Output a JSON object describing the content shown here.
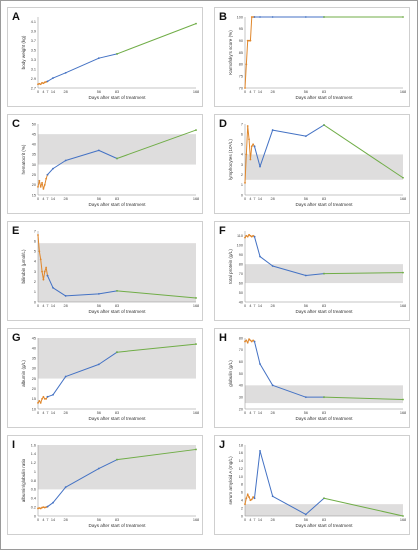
{
  "figure": {
    "colors": {
      "early": "#e0872c",
      "treatment": "#4472c4",
      "followup": "#70ad47",
      "normal_band": "#dedddd",
      "axis": "#8c8c8c"
    }
  },
  "chart_data": [
    {
      "panel": "A",
      "type": "line",
      "xlabel": "Days after start of treatment",
      "ylabel": "body weight (kg)",
      "xticks": [
        0,
        4,
        7,
        14,
        28,
        56,
        83,
        168
      ],
      "xlim": [
        0,
        168
      ],
      "ylim": [
        2.7,
        4.2
      ],
      "yticks": [
        2.7,
        2.9,
        3.1,
        3.3,
        3.5,
        3.7,
        3.9,
        4.1
      ],
      "ytick_labels": [
        "2.7",
        "2.9",
        "3.1",
        "3.3",
        "3.5",
        "3.7",
        "3.9",
        "4.1"
      ],
      "band": null,
      "series": [
        {
          "color": "orange",
          "x": [
            0,
            1,
            2,
            3,
            4,
            5,
            6,
            7
          ],
          "y": [
            2.78,
            2.79,
            2.78,
            2.81,
            2.8,
            2.82,
            2.83,
            2.84
          ]
        },
        {
          "color": "blue",
          "x": [
            7,
            14,
            28,
            56,
            83
          ],
          "y": [
            2.84,
            2.91,
            3.02,
            3.33,
            3.42
          ]
        },
        {
          "color": "green",
          "x": [
            83,
            168
          ],
          "y": [
            3.42,
            4.06
          ]
        }
      ]
    },
    {
      "panel": "B",
      "type": "line",
      "xlabel": "Days after start of treatment",
      "ylabel": "Karnofsky's score (%)",
      "xticks": [
        0,
        4,
        7,
        14,
        28,
        56,
        83,
        168
      ],
      "xlim": [
        0,
        168
      ],
      "ylim": [
        70,
        100
      ],
      "yticks": [
        70,
        75,
        80,
        85,
        90,
        95,
        100
      ],
      "ytick_labels": [
        "70",
        "75",
        "80",
        "85",
        "90",
        "95",
        "100"
      ],
      "band": null,
      "series": [
        {
          "color": "orange",
          "x": [
            0,
            1,
            2,
            3,
            4,
            5,
            6,
            7
          ],
          "y": [
            70,
            80,
            90,
            90,
            90,
            100,
            100,
            100
          ]
        },
        {
          "color": "blue",
          "x": [
            7,
            14,
            28,
            56,
            83
          ],
          "y": [
            100,
            100,
            100,
            100,
            100
          ]
        },
        {
          "color": "green",
          "x": [
            83,
            168
          ],
          "y": [
            100,
            100
          ]
        }
      ]
    },
    {
      "panel": "C",
      "type": "line",
      "xlabel": "Days after start of treatment",
      "ylabel": "hematocrit (%)",
      "xticks": [
        0,
        4,
        7,
        14,
        28,
        56,
        83,
        168
      ],
      "xlim": [
        0,
        168
      ],
      "ylim": [
        15,
        50
      ],
      "yticks": [
        15,
        20,
        25,
        30,
        35,
        40,
        45,
        50
      ],
      "ytick_labels": [
        "15",
        "20",
        "25",
        "30",
        "35",
        "40",
        "45",
        "50"
      ],
      "band": [
        30,
        45
      ],
      "series": [
        {
          "color": "orange",
          "x": [
            0,
            1,
            2,
            3,
            4,
            5,
            6,
            7
          ],
          "y": [
            19,
            22,
            19,
            21,
            18,
            20,
            23,
            25
          ]
        },
        {
          "color": "blue",
          "x": [
            7,
            14,
            28,
            56,
            83
          ],
          "y": [
            25,
            28,
            32,
            37,
            33
          ]
        },
        {
          "color": "green",
          "x": [
            83,
            168
          ],
          "y": [
            33,
            47
          ]
        }
      ]
    },
    {
      "panel": "D",
      "type": "line",
      "xlabel": "Days after start of treatment",
      "ylabel": "lymphocytes (10⁹/L)",
      "xticks": [
        0,
        4,
        7,
        14,
        28,
        56,
        83,
        168
      ],
      "xlim": [
        0,
        168
      ],
      "ylim": [
        0,
        7
      ],
      "yticks": [
        0,
        1,
        2,
        3,
        4,
        5,
        6,
        7
      ],
      "ytick_labels": [
        "0",
        "1",
        "2",
        "3",
        "4",
        "5",
        "6",
        "7"
      ],
      "band": [
        1.5,
        4
      ],
      "series": [
        {
          "color": "orange",
          "x": [
            0,
            1,
            2,
            3,
            4,
            5,
            6,
            7
          ],
          "y": [
            1.2,
            4.0,
            6.8,
            5.5,
            3.5,
            4.8,
            5.0,
            4.8
          ]
        },
        {
          "color": "blue",
          "x": [
            7,
            14,
            28,
            56,
            83
          ],
          "y": [
            4.8,
            2.8,
            6.4,
            5.8,
            6.9
          ]
        },
        {
          "color": "green",
          "x": [
            83,
            168
          ],
          "y": [
            6.9,
            1.7
          ]
        }
      ]
    },
    {
      "panel": "E",
      "type": "line",
      "xlabel": "Days after start of treatment",
      "ylabel": "bilirubin (μmol/L)",
      "xticks": [
        0,
        4,
        7,
        14,
        28,
        56,
        83,
        168
      ],
      "xlim": [
        0,
        168
      ],
      "ylim": [
        0,
        7
      ],
      "yticks": [
        0,
        1,
        2,
        3,
        4,
        5,
        6,
        7
      ],
      "ytick_labels": [
        "0",
        "1",
        "2",
        "3",
        "4",
        "5",
        "6",
        "7"
      ],
      "band": [
        0,
        5.8
      ],
      "series": [
        {
          "color": "orange",
          "x": [
            0,
            1,
            2,
            3,
            4,
            5,
            6,
            7
          ],
          "y": [
            6.6,
            5.0,
            4.2,
            3.0,
            2.2,
            3.0,
            3.4,
            2.6
          ]
        },
        {
          "color": "blue",
          "x": [
            7,
            14,
            28,
            56,
            83
          ],
          "y": [
            2.6,
            1.4,
            0.6,
            0.8,
            1.1
          ]
        },
        {
          "color": "green",
          "x": [
            83,
            168
          ],
          "y": [
            1.1,
            0.4
          ]
        }
      ]
    },
    {
      "panel": "F",
      "type": "line",
      "xlabel": "Days after start of treatment",
      "ylabel": "total protein (g/L)",
      "xticks": [
        0,
        4,
        7,
        14,
        28,
        56,
        83,
        168
      ],
      "xlim": [
        0,
        168
      ],
      "ylim": [
        40,
        115
      ],
      "yticks": [
        40,
        50,
        60,
        70,
        80,
        90,
        100,
        110
      ],
      "ytick_labels": [
        "40",
        "50",
        "60",
        "70",
        "80",
        "90",
        "100",
        "110"
      ],
      "band": [
        60,
        80
      ],
      "series": [
        {
          "color": "orange",
          "x": [
            0,
            1,
            2,
            3,
            4,
            5,
            6,
            7
          ],
          "y": [
            108,
            110,
            109,
            111,
            110,
            109,
            110,
            109
          ]
        },
        {
          "color": "blue",
          "x": [
            7,
            14,
            28,
            56,
            83
          ],
          "y": [
            109,
            88,
            78,
            68,
            70
          ]
        },
        {
          "color": "green",
          "x": [
            83,
            168
          ],
          "y": [
            70,
            71
          ]
        }
      ]
    },
    {
      "panel": "G",
      "type": "line",
      "xlabel": "Days after start of treatment",
      "ylabel": "albumin (g/L)",
      "xticks": [
        0,
        4,
        7,
        14,
        28,
        56,
        83,
        168
      ],
      "xlim": [
        0,
        168
      ],
      "ylim": [
        10,
        45
      ],
      "yticks": [
        10,
        15,
        20,
        25,
        30,
        35,
        40,
        45
      ],
      "ytick_labels": [
        "10",
        "15",
        "20",
        "25",
        "30",
        "35",
        "40",
        "45"
      ],
      "band": [
        25,
        45
      ],
      "series": [
        {
          "color": "orange",
          "x": [
            0,
            1,
            2,
            3,
            4,
            5,
            6,
            7
          ],
          "y": [
            13,
            14,
            13,
            15,
            16,
            15,
            15,
            16
          ]
        },
        {
          "color": "blue",
          "x": [
            7,
            14,
            28,
            56,
            83
          ],
          "y": [
            16,
            17,
            26,
            32,
            38
          ]
        },
        {
          "color": "green",
          "x": [
            83,
            168
          ],
          "y": [
            38,
            42
          ]
        }
      ]
    },
    {
      "panel": "H",
      "type": "line",
      "xlabel": "Days after start of treatment",
      "ylabel": "globulin (g/L)",
      "xticks": [
        0,
        4,
        7,
        14,
        28,
        56,
        83,
        168
      ],
      "xlim": [
        0,
        168
      ],
      "ylim": [
        20,
        80
      ],
      "yticks": [
        20,
        30,
        40,
        50,
        60,
        70,
        80
      ],
      "ytick_labels": [
        "20",
        "30",
        "40",
        "50",
        "60",
        "70",
        "80"
      ],
      "band": [
        25,
        40
      ],
      "series": [
        {
          "color": "orange",
          "x": [
            0,
            1,
            2,
            3,
            4,
            5,
            6,
            7
          ],
          "y": [
            77,
            78,
            76,
            79,
            78,
            77,
            78,
            77
          ]
        },
        {
          "color": "blue",
          "x": [
            7,
            14,
            28,
            56,
            83
          ],
          "y": [
            77,
            58,
            40,
            30,
            30
          ]
        },
        {
          "color": "green",
          "x": [
            83,
            168
          ],
          "y": [
            30,
            28
          ]
        }
      ]
    },
    {
      "panel": "I",
      "type": "line",
      "xlabel": "Days after start of treatment",
      "ylabel": "albumin/globulin ratio",
      "xticks": [
        0,
        4,
        7,
        14,
        28,
        56,
        83,
        168
      ],
      "xlim": [
        0,
        168
      ],
      "ylim": [
        0,
        1.6
      ],
      "yticks": [
        0,
        0.2,
        0.4,
        0.6,
        0.8,
        1.0,
        1.2,
        1.4,
        1.6
      ],
      "ytick_labels": [
        "0",
        "0.2",
        "0.4",
        "0.6",
        "0.8",
        "1",
        "1.2",
        "1.4",
        "1.6"
      ],
      "band": [
        0.6,
        1.6
      ],
      "series": [
        {
          "color": "orange",
          "x": [
            0,
            1,
            2,
            3,
            4,
            5,
            6,
            7
          ],
          "y": [
            0.17,
            0.18,
            0.17,
            0.19,
            0.2,
            0.19,
            0.2,
            0.21
          ]
        },
        {
          "color": "blue",
          "x": [
            7,
            14,
            28,
            56,
            83
          ],
          "y": [
            0.21,
            0.3,
            0.65,
            1.07,
            1.27
          ]
        },
        {
          "color": "green",
          "x": [
            83,
            168
          ],
          "y": [
            1.27,
            1.5
          ]
        }
      ]
    },
    {
      "panel": "J",
      "type": "line",
      "xlabel": "Days after start of treatment",
      "ylabel": "serum amyloid A (mg/L)",
      "xticks": [
        0,
        4,
        7,
        14,
        28,
        56,
        83,
        168
      ],
      "xlim": [
        0,
        168
      ],
      "ylim": [
        0,
        18
      ],
      "yticks": [
        0,
        2,
        4,
        6,
        8,
        10,
        12,
        14,
        16,
        18
      ],
      "ytick_labels": [
        "0",
        "2",
        "4",
        "6",
        "8",
        "10",
        "12",
        "14",
        "16",
        "18"
      ],
      "band": [
        0,
        3
      ],
      "series": [
        {
          "color": "orange",
          "x": [
            0,
            1,
            2,
            3,
            4,
            5,
            6,
            7
          ],
          "y": [
            3,
            4.5,
            5.5,
            4.8,
            4.0,
            4.2,
            4.8,
            4.5
          ]
        },
        {
          "color": "blue",
          "x": [
            7,
            14,
            28,
            56,
            83
          ],
          "y": [
            4.5,
            16.5,
            5.0,
            0.4,
            4.5
          ]
        },
        {
          "color": "green",
          "x": [
            83,
            168
          ],
          "y": [
            4.5,
            0
          ]
        }
      ]
    }
  ]
}
